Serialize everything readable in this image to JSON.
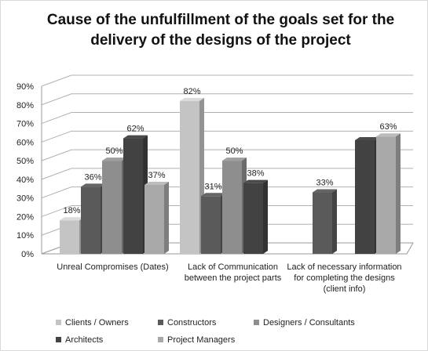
{
  "chart_data": {
    "type": "bar3d",
    "title": "Cause of the unfulfillment of the goals set for the delivery of the designs of the project",
    "categories": [
      "Unreal Compromises (Dates)",
      "Lack of Communication between the project parts",
      "Lack of necessary information for completing the designs (client info)"
    ],
    "series": [
      {
        "name": "Clients / Owners",
        "color": "#c4c4c4",
        "values": [
          18,
          82,
          null
        ],
        "value_labels": [
          "18%",
          "82%",
          null
        ]
      },
      {
        "name": "Constructors",
        "color": "#5a5a5a",
        "values": [
          36,
          31,
          33
        ],
        "value_labels": [
          "36%",
          "31%",
          "33%"
        ]
      },
      {
        "name": "Designers / Consultants",
        "color": "#8e8e8e",
        "values": [
          50,
          50,
          null
        ],
        "value_labels": [
          "50%",
          "50%",
          null
        ]
      },
      {
        "name": "Architects",
        "color": "#424242",
        "values": [
          62,
          38,
          61
        ],
        "value_labels": [
          "62%",
          "38%",
          null
        ]
      },
      {
        "name": "Project Managers",
        "color": "#a8a8a8",
        "values": [
          37,
          null,
          63
        ],
        "value_labels": [
          "37%",
          null,
          "63%"
        ]
      }
    ],
    "ylim": [
      0,
      90
    ],
    "yticks": [
      {
        "value": 0,
        "label": "0%"
      },
      {
        "value": 10,
        "label": "10%"
      },
      {
        "value": 20,
        "label": "20%"
      },
      {
        "value": 30,
        "label": "30%"
      },
      {
        "value": 40,
        "label": "40%"
      },
      {
        "value": 50,
        "label": "50%"
      },
      {
        "value": 60,
        "label": "60%"
      },
      {
        "value": 70,
        "label": "70%"
      },
      {
        "value": 80,
        "label": "80%"
      },
      {
        "value": 90,
        "label": "90%"
      }
    ],
    "grid": true,
    "legend": "bottom"
  }
}
